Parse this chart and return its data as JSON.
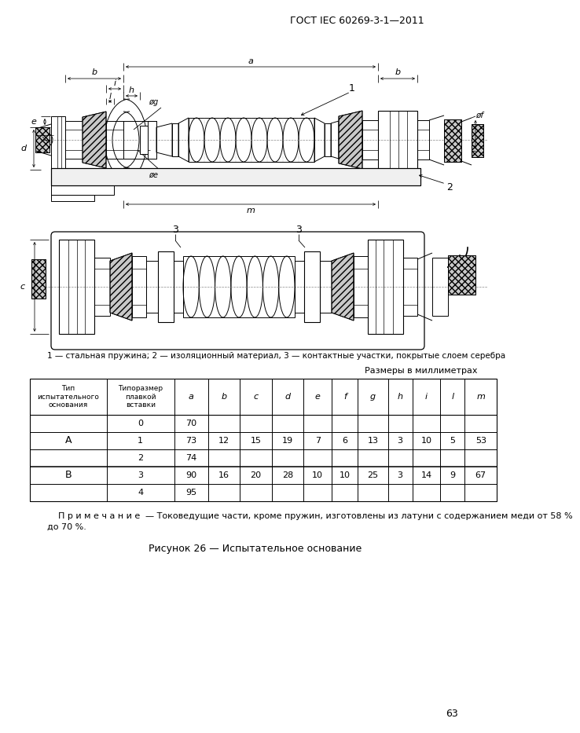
{
  "header": "ГОСТ IEC 60269-3-1—2011",
  "page_num": "63",
  "figure_caption": "Рисунок 26 — Испытательное основание",
  "note_line1": "П р и м е ч а н и е — Токоведущие части, кроме пружин, изготовлены из латуни с содержанием меди от 58 %",
  "note_line2": "до 70 %.",
  "legend": "1 — стальная пружина; 2 — изоляционный материал, 3 — контактные участки, покрытые слоем серебра",
  "size_note": "Размеры в миллиметрах",
  "bg_color": "#ffffff"
}
